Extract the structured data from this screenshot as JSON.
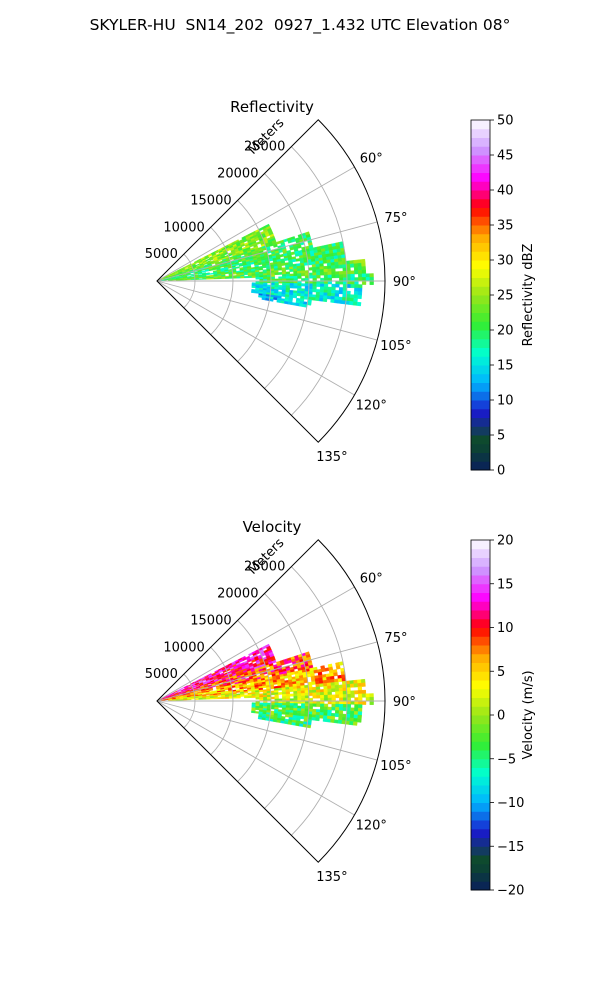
{
  "figure_title": "SKYLER-HU  SN14_202  0927_1.432 UTC Elevation 08°",
  "chart_data": [
    {
      "type": "heatmap",
      "subtype": "polar-sector-radar",
      "title": "Reflectivity",
      "radial_axis_label": "Meters",
      "radial_ticks": [
        "5000",
        "10000",
        "15000",
        "20000",
        "25000"
      ],
      "radial_tick_values": [
        5000,
        10000,
        15000,
        20000,
        25000
      ],
      "rmax": 30000,
      "angle_ticks": [
        "60°",
        "75°",
        "90°",
        "105°",
        "120°",
        "135°"
      ],
      "angle_tick_values": [
        60,
        75,
        90,
        105,
        120,
        135
      ],
      "angle_range": [
        45,
        135
      ],
      "grid": true,
      "colorbar": {
        "label": "Reflectivity dBZ",
        "range": [
          0,
          50
        ],
        "ticks": [
          "0",
          "5",
          "10",
          "15",
          "20",
          "25",
          "30",
          "35",
          "40",
          "45",
          "50"
        ]
      },
      "echo_regions": [
        {
          "az": [
            63,
            72
          ],
          "r": [
            0,
            16500
          ],
          "value": 24
        },
        {
          "az": [
            72,
            78
          ],
          "r": [
            0,
            21000
          ],
          "value": 21
        },
        {
          "az": [
            78,
            84
          ],
          "r": [
            0,
            25000
          ],
          "value": 20
        },
        {
          "az": [
            84,
            88
          ],
          "r": [
            1500,
            27500
          ],
          "value": 22
        },
        {
          "az": [
            88,
            91
          ],
          "r": [
            13000,
            28500
          ],
          "value": 20
        },
        {
          "az": [
            91,
            97
          ],
          "r": [
            12500,
            27000
          ],
          "value": 16
        },
        {
          "az": [
            97,
            100
          ],
          "r": [
            13500,
            20500
          ],
          "value": 14
        }
      ]
    },
    {
      "type": "heatmap",
      "subtype": "polar-sector-radar",
      "title": "Velocity",
      "radial_axis_label": "Meters",
      "radial_ticks": [
        "5000",
        "10000",
        "15000",
        "20000",
        "25000"
      ],
      "radial_tick_values": [
        5000,
        10000,
        15000,
        20000,
        25000
      ],
      "rmax": 30000,
      "angle_ticks": [
        "60°",
        "75°",
        "90°",
        "105°",
        "120°",
        "135°"
      ],
      "angle_tick_values": [
        60,
        75,
        90,
        105,
        120,
        135
      ],
      "angle_range": [
        45,
        135
      ],
      "grid": true,
      "colorbar": {
        "label": "Velocity (m/s)",
        "range": [
          -20,
          20
        ],
        "ticks": [
          "−20",
          "−15",
          "−10",
          "−5",
          "0",
          "5",
          "10",
          "15",
          "20"
        ]
      },
      "echo_regions": [
        {
          "az": [
            63,
            72
          ],
          "r": [
            0,
            16500
          ],
          "value": 12
        },
        {
          "az": [
            72,
            78
          ],
          "r": [
            0,
            21000
          ],
          "value": 9
        },
        {
          "az": [
            78,
            84
          ],
          "r": [
            0,
            25000
          ],
          "value": 6
        },
        {
          "az": [
            84,
            88
          ],
          "r": [
            1500,
            27500
          ],
          "value": 3
        },
        {
          "az": [
            88,
            91
          ],
          "r": [
            13000,
            28500
          ],
          "value": 2
        },
        {
          "az": [
            91,
            97
          ],
          "r": [
            12500,
            27000
          ],
          "value": -3
        },
        {
          "az": [
            97,
            100
          ],
          "r": [
            13500,
            20500
          ],
          "value": -4
        }
      ]
    }
  ],
  "colormap_stops": [
    "#0a1f5c",
    "#0d4d26",
    "#1a1acc",
    "#00b4ff",
    "#00ffd0",
    "#33ee33",
    "#99e619",
    "#ffff00",
    "#ffaa00",
    "#ff0000",
    "#ff00ff",
    "#cc99ff",
    "#ffffff"
  ]
}
